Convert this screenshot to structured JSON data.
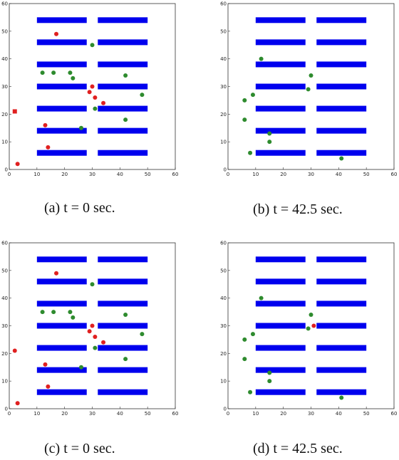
{
  "chart_data": [
    {
      "type": "scatter",
      "caption": "(a) t = 0 sec.",
      "xlim": [
        0,
        60
      ],
      "ylim": [
        0,
        60
      ],
      "xticks": [
        0,
        10,
        20,
        30,
        40,
        50,
        60
      ],
      "yticks": [
        0,
        10,
        20,
        30,
        40,
        50,
        60
      ],
      "shelves": [
        [
          10,
          28,
          6
        ],
        [
          32,
          50,
          6
        ],
        [
          10,
          28,
          14
        ],
        [
          32,
          50,
          14
        ],
        [
          10,
          28,
          22
        ],
        [
          32,
          50,
          22
        ],
        [
          10,
          28,
          30
        ],
        [
          32,
          50,
          30
        ],
        [
          10,
          28,
          38
        ],
        [
          32,
          50,
          38
        ],
        [
          10,
          28,
          46
        ],
        [
          32,
          50,
          46
        ],
        [
          10,
          28,
          54
        ],
        [
          32,
          50,
          54
        ]
      ],
      "series": [
        {
          "color": "#2e8b2e",
          "points": [
            [
              12,
              35
            ],
            [
              16,
              35
            ],
            [
              22,
              35
            ],
            [
              23,
              33
            ],
            [
              30,
              45
            ],
            [
              31,
              22
            ],
            [
              42,
              34
            ],
            [
              48,
              27
            ],
            [
              42,
              18
            ],
            [
              26,
              15
            ]
          ]
        },
        {
          "color": "#e02020",
          "points": [
            [
              17,
              49
            ],
            [
              30,
              30
            ],
            [
              29,
              28
            ],
            [
              31,
              26
            ],
            [
              34,
              24
            ],
            [
              13,
              16
            ],
            [
              14,
              8
            ],
            [
              3,
              2
            ]
          ]
        }
      ],
      "markers": [
        {
          "color": "#e02020",
          "shape": "square",
          "x": 2,
          "y": 21
        }
      ]
    },
    {
      "type": "scatter",
      "caption": "(b) t = 42.5 sec.",
      "xlim": [
        0,
        60
      ],
      "ylim": [
        0,
        60
      ],
      "xticks": [
        0,
        10,
        20,
        30,
        40,
        50,
        60
      ],
      "yticks": [
        0,
        10,
        20,
        30,
        40,
        50,
        60
      ],
      "shelves": [
        [
          10,
          28,
          6
        ],
        [
          32,
          50,
          6
        ],
        [
          10,
          28,
          14
        ],
        [
          32,
          50,
          14
        ],
        [
          10,
          28,
          22
        ],
        [
          32,
          50,
          22
        ],
        [
          10,
          28,
          30
        ],
        [
          32,
          50,
          30
        ],
        [
          10,
          28,
          38
        ],
        [
          32,
          50,
          38
        ],
        [
          10,
          28,
          46
        ],
        [
          32,
          50,
          46
        ],
        [
          10,
          28,
          54
        ],
        [
          32,
          50,
          54
        ]
      ],
      "series": [
        {
          "color": "#2e8b2e",
          "points": [
            [
              12,
              40
            ],
            [
              30,
              34
            ],
            [
              29,
              29
            ],
            [
              9,
              27
            ],
            [
              6,
              25
            ],
            [
              6,
              18
            ],
            [
              15,
              13
            ],
            [
              15,
              10
            ],
            [
              8,
              6
            ],
            [
              41,
              4
            ]
          ]
        }
      ],
      "markers": []
    },
    {
      "type": "scatter",
      "caption": "(c) t = 0 sec.",
      "xlim": [
        0,
        60
      ],
      "ylim": [
        0,
        60
      ],
      "xticks": [
        0,
        10,
        20,
        30,
        40,
        50,
        60
      ],
      "yticks": [
        0,
        10,
        20,
        30,
        40,
        50,
        60
      ],
      "shelves": [
        [
          10,
          28,
          6
        ],
        [
          32,
          50,
          6
        ],
        [
          10,
          28,
          14
        ],
        [
          32,
          50,
          14
        ],
        [
          10,
          28,
          22
        ],
        [
          32,
          50,
          22
        ],
        [
          10,
          28,
          30
        ],
        [
          32,
          50,
          30
        ],
        [
          10,
          28,
          38
        ],
        [
          32,
          50,
          38
        ],
        [
          10,
          28,
          46
        ],
        [
          32,
          50,
          46
        ],
        [
          10,
          28,
          54
        ],
        [
          32,
          50,
          54
        ]
      ],
      "series": [
        {
          "color": "#2e8b2e",
          "points": [
            [
              12,
              35
            ],
            [
              16,
              35
            ],
            [
              22,
              35
            ],
            [
              23,
              33
            ],
            [
              30,
              45
            ],
            [
              31,
              22
            ],
            [
              42,
              34
            ],
            [
              48,
              27
            ],
            [
              42,
              18
            ],
            [
              26,
              15
            ]
          ]
        },
        {
          "color": "#e02020",
          "points": [
            [
              17,
              49
            ],
            [
              30,
              30
            ],
            [
              29,
              28
            ],
            [
              31,
              26
            ],
            [
              34,
              24
            ],
            [
              13,
              16
            ],
            [
              14,
              8
            ],
            [
              3,
              2
            ],
            [
              2,
              21
            ]
          ]
        }
      ],
      "markers": []
    },
    {
      "type": "scatter",
      "caption": "(d) t = 42.5 sec.",
      "xlim": [
        0,
        60
      ],
      "ylim": [
        0,
        60
      ],
      "xticks": [
        0,
        10,
        20,
        30,
        40,
        50,
        60
      ],
      "yticks": [
        0,
        10,
        20,
        30,
        40,
        50,
        60
      ],
      "shelves": [
        [
          10,
          28,
          6
        ],
        [
          32,
          50,
          6
        ],
        [
          10,
          28,
          14
        ],
        [
          32,
          50,
          14
        ],
        [
          10,
          28,
          22
        ],
        [
          32,
          50,
          22
        ],
        [
          10,
          28,
          30
        ],
        [
          32,
          50,
          30
        ],
        [
          10,
          28,
          38
        ],
        [
          32,
          50,
          38
        ],
        [
          10,
          28,
          46
        ],
        [
          32,
          50,
          46
        ],
        [
          10,
          28,
          54
        ],
        [
          32,
          50,
          54
        ]
      ],
      "series": [
        {
          "color": "#2e8b2e",
          "points": [
            [
              12,
              40
            ],
            [
              30,
              34
            ],
            [
              29,
              29
            ],
            [
              9,
              27
            ],
            [
              6,
              25
            ],
            [
              6,
              18
            ],
            [
              15,
              13
            ],
            [
              15,
              10
            ],
            [
              8,
              6
            ],
            [
              41,
              4
            ]
          ]
        },
        {
          "color": "#e02020",
          "points": [
            [
              31,
              30
            ]
          ]
        }
      ],
      "markers": []
    }
  ]
}
